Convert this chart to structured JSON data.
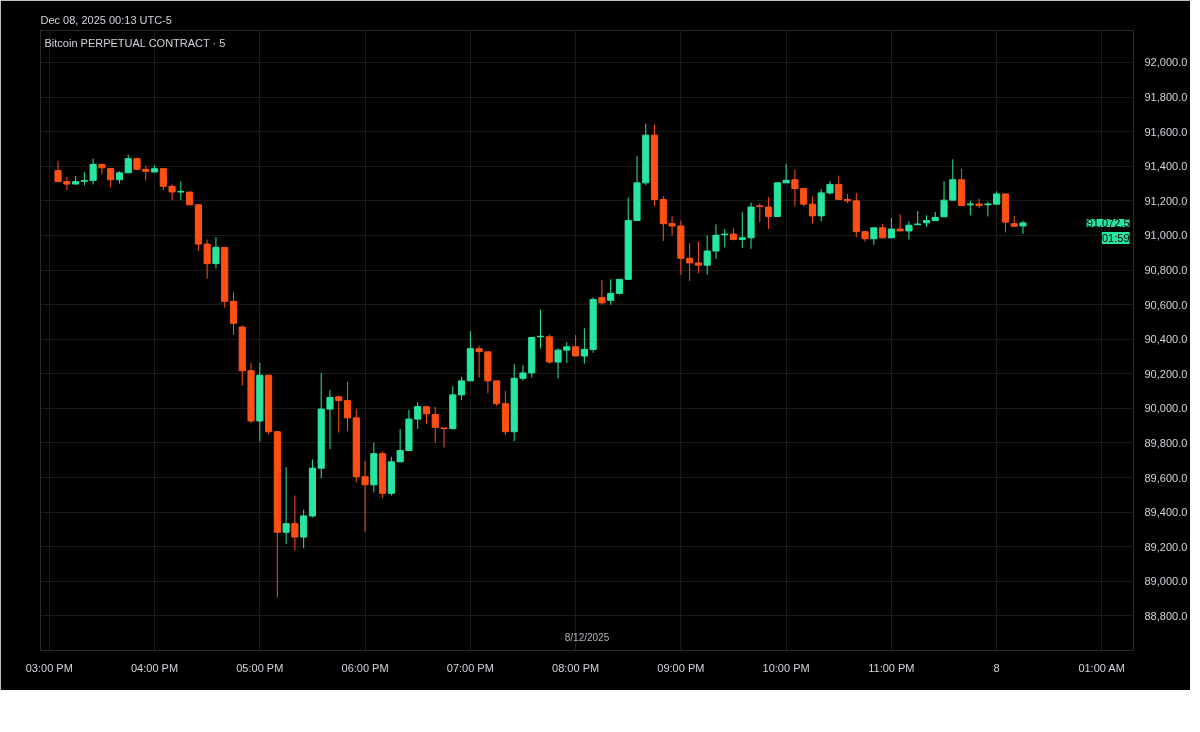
{
  "chart_data": {
    "type": "candlestick",
    "title": "Bitcoin PERPETUAL CONTRACT · 5",
    "subtitle": "Dec 08, 2025 00:13 UTC-5",
    "x": [
      "2025-12-07T15:05",
      "2025-12-07T15:10",
      "2025-12-07T15:15",
      "2025-12-07T15:20",
      "2025-12-07T15:25",
      "2025-12-07T15:30",
      "2025-12-07T15:35",
      "2025-12-07T15:40",
      "2025-12-07T15:45",
      "2025-12-07T15:50",
      "2025-12-07T15:55",
      "2025-12-07T16:00",
      "2025-12-07T16:05",
      "2025-12-07T16:10",
      "2025-12-07T16:15",
      "2025-12-07T16:20",
      "2025-12-07T16:25",
      "2025-12-07T16:30",
      "2025-12-07T16:35",
      "2025-12-07T16:40",
      "2025-12-07T16:45",
      "2025-12-07T16:50",
      "2025-12-07T16:55",
      "2025-12-07T17:00",
      "2025-12-07T17:05",
      "2025-12-07T17:10",
      "2025-12-07T17:15",
      "2025-12-07T17:20",
      "2025-12-07T17:25",
      "2025-12-07T17:30",
      "2025-12-07T17:35",
      "2025-12-07T17:40",
      "2025-12-07T17:45",
      "2025-12-07T17:50",
      "2025-12-07T17:55",
      "2025-12-07T18:00",
      "2025-12-07T18:05",
      "2025-12-07T18:10",
      "2025-12-07T18:15",
      "2025-12-07T18:20",
      "2025-12-07T18:25",
      "2025-12-07T18:30",
      "2025-12-07T18:35",
      "2025-12-07T18:40",
      "2025-12-07T18:45",
      "2025-12-07T18:50",
      "2025-12-07T18:55",
      "2025-12-07T19:00",
      "2025-12-07T19:05",
      "2025-12-07T19:10",
      "2025-12-07T19:15",
      "2025-12-07T19:20",
      "2025-12-07T19:25",
      "2025-12-07T19:30",
      "2025-12-07T19:35",
      "2025-12-07T19:40",
      "2025-12-07T19:45",
      "2025-12-07T19:50",
      "2025-12-07T19:55",
      "2025-12-07T20:00",
      "2025-12-07T20:05",
      "2025-12-07T20:10",
      "2025-12-07T20:15",
      "2025-12-07T20:20",
      "2025-12-07T20:25",
      "2025-12-07T20:30",
      "2025-12-07T20:35",
      "2025-12-07T20:40",
      "2025-12-07T20:45",
      "2025-12-07T20:50",
      "2025-12-07T20:55",
      "2025-12-07T21:00",
      "2025-12-07T21:05",
      "2025-12-07T21:10",
      "2025-12-07T21:15",
      "2025-12-07T21:20",
      "2025-12-07T21:25",
      "2025-12-07T21:30",
      "2025-12-07T21:35",
      "2025-12-07T21:40",
      "2025-12-07T21:45",
      "2025-12-07T21:50",
      "2025-12-07T21:55",
      "2025-12-07T22:00",
      "2025-12-07T22:05",
      "2025-12-07T22:10",
      "2025-12-07T22:15",
      "2025-12-07T22:20",
      "2025-12-07T22:25",
      "2025-12-07T22:30",
      "2025-12-07T22:35",
      "2025-12-07T22:40",
      "2025-12-07T22:45",
      "2025-12-07T22:50",
      "2025-12-07T22:55",
      "2025-12-07T23:00",
      "2025-12-07T23:05",
      "2025-12-07T23:10",
      "2025-12-07T23:15",
      "2025-12-07T23:20",
      "2025-12-07T23:25",
      "2025-12-07T23:30",
      "2025-12-07T23:35",
      "2025-12-07T23:40",
      "2025-12-07T23:45",
      "2025-12-07T23:50",
      "2025-12-07T23:55",
      "2025-12-08T00:00",
      "2025-12-08T00:05",
      "2025-12-08T00:10",
      "2025-12-08T00:15"
    ],
    "ohlc": [
      [
        91375,
        91431,
        91311,
        91311
      ],
      [
        91311,
        91340,
        91262,
        91297
      ],
      [
        91297,
        91344,
        91295,
        91311
      ],
      [
        91313,
        91367,
        91289,
        91318
      ],
      [
        91318,
        91444,
        91295,
        91411
      ],
      [
        91411,
        91416,
        91353,
        91391
      ],
      [
        91387,
        91387,
        91277,
        91322
      ],
      [
        91322,
        91371,
        91300,
        91362
      ],
      [
        91362,
        91467,
        91362,
        91444
      ],
      [
        91444,
        91449,
        91382,
        91382
      ],
      [
        91382,
        91404,
        91317,
        91371
      ],
      [
        91367,
        91404,
        91367,
        91386
      ],
      [
        91386,
        91386,
        91262,
        91284
      ],
      [
        91284,
        91295,
        91204,
        91251
      ],
      [
        91251,
        91313,
        91204,
        91255
      ],
      [
        91251,
        91251,
        91177,
        91177
      ],
      [
        91177,
        91177,
        90910,
        90950
      ],
      [
        90950,
        90977,
        90750,
        90837
      ],
      [
        90837,
        90991,
        90808,
        90931
      ],
      [
        90931,
        90931,
        90583,
        90619
      ],
      [
        90619,
        90673,
        90426,
        90492
      ],
      [
        90470,
        90480,
        90132,
        90217
      ],
      [
        90218,
        90263,
        89914,
        89927
      ],
      [
        89927,
        90263,
        89809,
        90192
      ],
      [
        90192,
        90192,
        89850,
        89865
      ],
      [
        89865,
        89869,
        88906,
        89284
      ],
      [
        89284,
        89660,
        89215,
        89333
      ],
      [
        89333,
        89496,
        89178,
        89256
      ],
      [
        89256,
        89414,
        89191,
        89378
      ],
      [
        89378,
        89705,
        89369,
        89654
      ],
      [
        89654,
        90205,
        89596,
        89996
      ],
      [
        89996,
        90105,
        89765,
        90063
      ],
      [
        90067,
        90074,
        89860,
        90045
      ],
      [
        90045,
        90154,
        89869,
        89945
      ],
      [
        89945,
        89996,
        89572,
        89605
      ],
      [
        89605,
        89696,
        89287,
        89558
      ],
      [
        89558,
        89801,
        89514,
        89738
      ],
      [
        89738,
        89751,
        89483,
        89509
      ],
      [
        89509,
        89720,
        89496,
        89691
      ],
      [
        89691,
        89881,
        89691,
        89756
      ],
      [
        89756,
        89992,
        89756,
        89938
      ],
      [
        89938,
        90036,
        89881,
        90010
      ],
      [
        90010,
        90010,
        89910,
        89969
      ],
      [
        89965,
        90008,
        89800,
        89890
      ],
      [
        89887,
        89887,
        89774,
        89883
      ],
      [
        89883,
        90128,
        89878,
        90078
      ],
      [
        90078,
        90183,
        90050,
        90159
      ],
      [
        90159,
        90447,
        90159,
        90345
      ],
      [
        90345,
        90363,
        90177,
        90328
      ],
      [
        90327,
        90327,
        90087,
        90159
      ],
      [
        90159,
        90159,
        90014,
        90027
      ],
      [
        90027,
        90101,
        89845,
        89865
      ],
      [
        89865,
        90256,
        89810,
        90174
      ],
      [
        90174,
        90250,
        90159,
        90205
      ],
      [
        90205,
        90410,
        90178,
        90410
      ],
      [
        90414,
        90572,
        90346,
        90417
      ],
      [
        90414,
        90428,
        90259,
        90268
      ],
      [
        90268,
        90347,
        90174,
        90337
      ],
      [
        90337,
        90383,
        90263,
        90356
      ],
      [
        90356,
        90423,
        90303,
        90303
      ],
      [
        90303,
        90463,
        90259,
        90341
      ],
      [
        90341,
        90643,
        90321,
        90630
      ],
      [
        90640,
        90741,
        90600,
        90610
      ],
      [
        90625,
        90746,
        90600,
        90665
      ],
      [
        90665,
        90746,
        90659,
        90746
      ],
      [
        90746,
        91219,
        90746,
        91086
      ],
      [
        91086,
        91458,
        91086,
        91304
      ],
      [
        91304,
        91646,
        91291,
        91580
      ],
      [
        91580,
        91640,
        91168,
        91208
      ],
      [
        91208,
        91228,
        90968,
        91068
      ],
      [
        91068,
        91110,
        90999,
        91055
      ],
      [
        91055,
        91086,
        90772,
        90868
      ],
      [
        90868,
        90955,
        90737,
        90841
      ],
      [
        90841,
        90964,
        90781,
        90828
      ],
      [
        90828,
        91001,
        90772,
        90910
      ],
      [
        90910,
        91064,
        90864,
        91001
      ],
      [
        91004,
        91037,
        90932,
        91008
      ],
      [
        91008,
        91041,
        90971,
        90977
      ],
      [
        90977,
        91135,
        90928,
        90986
      ],
      [
        90986,
        91191,
        90923,
        91164
      ],
      [
        91171,
        91186,
        91077,
        91168
      ],
      [
        91164,
        91222,
        91037,
        91110
      ],
      [
        91110,
        91304,
        91110,
        91304
      ],
      [
        91304,
        91413,
        91304,
        91319
      ],
      [
        91322,
        91380,
        91168,
        91271
      ],
      [
        91271,
        91271,
        91168,
        91181
      ],
      [
        91181,
        91226,
        91068,
        91113
      ],
      [
        91113,
        91268,
        91081,
        91246
      ],
      [
        91246,
        91313,
        91237,
        91295
      ],
      [
        91295,
        91346,
        91208,
        91208
      ],
      [
        91208,
        91240,
        91186,
        91200
      ],
      [
        91200,
        91246,
        90990,
        91022
      ],
      [
        91022,
        91022,
        90964,
        90981
      ],
      [
        90981,
        91044,
        90946,
        91044
      ],
      [
        91044,
        91068,
        90986,
        90986
      ],
      [
        90986,
        91101,
        90986,
        91037
      ],
      [
        91037,
        91122,
        91026,
        91026
      ],
      [
        91026,
        91081,
        90977,
        91059
      ],
      [
        91062,
        91141,
        91062,
        91066
      ],
      [
        91073,
        91117,
        91050,
        91086
      ],
      [
        91086,
        91135,
        91086,
        91104
      ],
      [
        91108,
        91313,
        91108,
        91204
      ],
      [
        91204,
        91440,
        91204,
        91322
      ],
      [
        91322,
        91386,
        91173,
        91173
      ],
      [
        91177,
        91200,
        91117,
        91182
      ],
      [
        91182,
        91213,
        91159,
        91173
      ],
      [
        91177,
        91195,
        91110,
        91182
      ],
      [
        91181,
        91255,
        91181,
        91240
      ],
      [
        91240,
        91240,
        91017,
        91077
      ],
      [
        91068,
        91113,
        91053,
        91053
      ],
      [
        91055,
        91086,
        91008,
        91072.5
      ]
    ],
    "colors": [
      "#ff5014",
      "#ff5014",
      "#27e6a0",
      "#27e6a0",
      "#27e6a0",
      "#ff5014",
      "#ff5014",
      "#27e6a0",
      "#27e6a0",
      "#ff5014",
      "#ff5014",
      "#27e6a0",
      "#ff5014",
      "#ff5014",
      "#27e6a0",
      "#ff5014",
      "#ff5014",
      "#ff5014",
      "#27e6a0",
      "#ff5014",
      "#ff5014",
      "#ff5014",
      "#ff5014",
      "#27e6a0",
      "#ff5014",
      "#ff5014",
      "#27e6a0",
      "#ff5014",
      "#27e6a0",
      "#27e6a0",
      "#27e6a0",
      "#27e6a0",
      "#ff5014",
      "#ff5014",
      "#ff5014",
      "#ff5014",
      "#27e6a0",
      "#ff5014",
      "#27e6a0",
      "#27e6a0",
      "#27e6a0",
      "#27e6a0",
      "#ff5014",
      "#ff5014",
      "#ff5014",
      "#27e6a0",
      "#27e6a0",
      "#27e6a0",
      "#ff5014",
      "#ff5014",
      "#ff5014",
      "#ff5014",
      "#27e6a0",
      "#27e6a0",
      "#27e6a0",
      "#27e6a0",
      "#ff5014",
      "#27e6a0",
      "#27e6a0",
      "#ff5014",
      "#27e6a0",
      "#27e6a0",
      "#ff5014",
      "#27e6a0",
      "#27e6a0",
      "#27e6a0",
      "#27e6a0",
      "#27e6a0",
      "#ff5014",
      "#ff5014",
      "#ff5014",
      "#ff5014",
      "#ff5014",
      "#ff5014",
      "#27e6a0",
      "#27e6a0",
      "#27e6a0",
      "#ff5014",
      "#27e6a0",
      "#27e6a0",
      "#ff5014",
      "#ff5014",
      "#27e6a0",
      "#27e6a0",
      "#ff5014",
      "#ff5014",
      "#ff5014",
      "#27e6a0",
      "#27e6a0",
      "#ff5014",
      "#ff5014",
      "#ff5014",
      "#ff5014",
      "#27e6a0",
      "#ff5014",
      "#27e6a0",
      "#ff5014",
      "#27e6a0",
      "#27e6a0",
      "#27e6a0",
      "#27e6a0",
      "#27e6a0",
      "#27e6a0",
      "#ff5014",
      "#27e6a0",
      "#ff5014",
      "#27e6a0",
      "#27e6a0",
      "#ff5014",
      "#ff5014",
      "#27e6a0"
    ],
    "xlim": [
      "2025-12-07T14:55",
      "2025-12-08T01:18"
    ],
    "xticks": [
      {
        "value": "2025-12-07T15:00",
        "label": "03:00 PM"
      },
      {
        "value": "2025-12-07T16:00",
        "label": "04:00 PM"
      },
      {
        "value": "2025-12-07T17:00",
        "label": "05:00 PM"
      },
      {
        "value": "2025-12-07T18:00",
        "label": "06:00 PM"
      },
      {
        "value": "2025-12-07T19:00",
        "label": "07:00 PM"
      },
      {
        "value": "2025-12-07T20:00",
        "label": "08:00 PM"
      },
      {
        "value": "2025-12-07T21:00",
        "label": "09:00 PM"
      },
      {
        "value": "2025-12-07T22:00",
        "label": "10:00 PM"
      },
      {
        "value": "2025-12-07T23:00",
        "label": "11:00 PM"
      },
      {
        "value": "2025-12-08T00:00",
        "label": "8"
      },
      {
        "value": "2025-12-08T01:00",
        "label": "01:00 AM"
      }
    ],
    "ylim": [
      88600,
      92185
    ],
    "yticks": [
      {
        "value": 88800,
        "label": "88,800.0"
      },
      {
        "value": 89000,
        "label": "89,000.0"
      },
      {
        "value": 89200,
        "label": "89,200.0"
      },
      {
        "value": 89400,
        "label": "89,400.0"
      },
      {
        "value": 89600,
        "label": "89,600.0"
      },
      {
        "value": 89800,
        "label": "89,800.0"
      },
      {
        "value": 90000,
        "label": "90,000.0"
      },
      {
        "value": 90200,
        "label": "90,200.0"
      },
      {
        "value": 90400,
        "label": "90,400.0"
      },
      {
        "value": 90600,
        "label": "90,600.0"
      },
      {
        "value": 90800,
        "label": "90,800.0"
      },
      {
        "value": 91000,
        "label": "91,000.0"
      },
      {
        "value": 91200,
        "label": "91,200.0"
      },
      {
        "value": 91400,
        "label": "91,400.0"
      },
      {
        "value": 91600,
        "label": "91,600.0"
      },
      {
        "value": 91800,
        "label": "91,800.0"
      },
      {
        "value": 92000,
        "label": "92,000.0"
      }
    ],
    "annotations": [
      "91,072.5",
      "01:59",
      "8/12/2025"
    ],
    "grid": true
  }
}
